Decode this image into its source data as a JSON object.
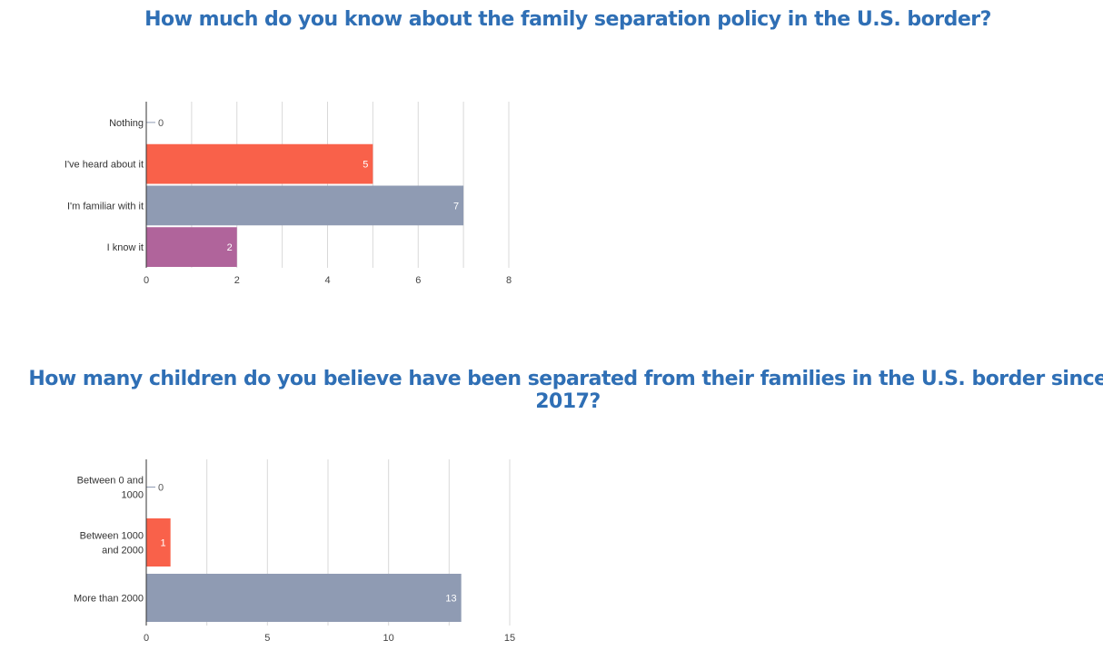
{
  "chart_data": [
    {
      "type": "bar",
      "orientation": "horizontal",
      "title": "How much do you know about the family separation policy in the U.S. border?",
      "categories": [
        "Nothing",
        "I've heard about it",
        "I'm familiar with it",
        "I know it"
      ],
      "values": [
        0,
        5,
        7,
        2
      ],
      "colors": [
        "#8f9bb3",
        "#f9614a",
        "#8f9bb3",
        "#b0649b"
      ],
      "xlim": [
        0,
        8
      ],
      "xticks": [
        0,
        2,
        4,
        6,
        8
      ],
      "grid": true
    },
    {
      "type": "bar",
      "orientation": "horizontal",
      "title": "How many children do you believe have been separated from their families in the U.S. border since 2017?",
      "categories": [
        [
          "Between 0 and",
          "1000"
        ],
        [
          "Between 1000",
          "and 2000"
        ],
        [
          "More than 2000"
        ]
      ],
      "values": [
        0,
        1,
        13
      ],
      "colors": [
        "#8f9bb3",
        "#f9614a",
        "#8f9bb3"
      ],
      "xlim": [
        0,
        15
      ],
      "xticks": [
        0,
        5,
        10,
        15
      ],
      "grid": true
    }
  ]
}
